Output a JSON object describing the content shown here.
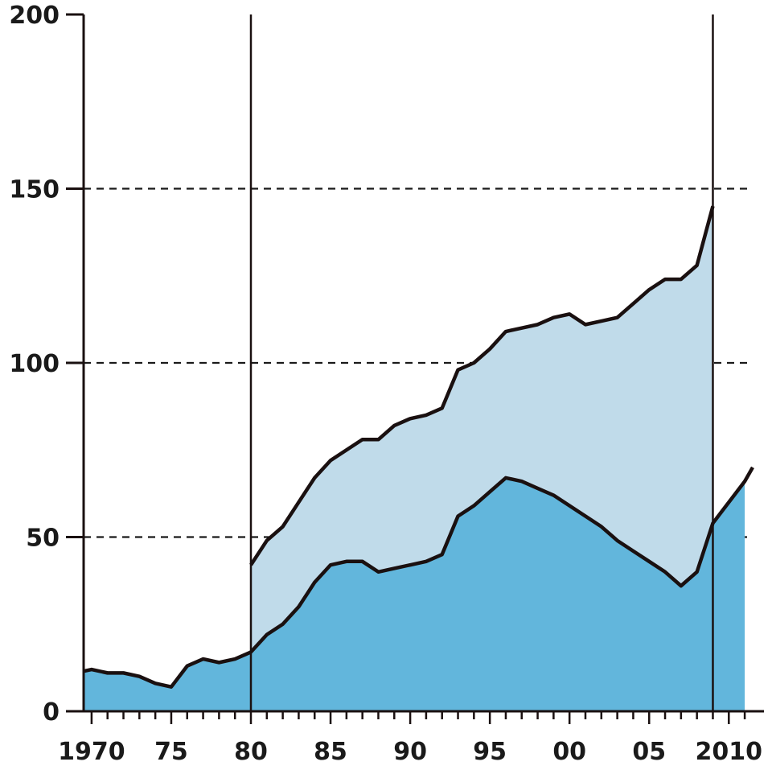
{
  "chart_data": {
    "type": "area",
    "title": "",
    "xlabel": "",
    "ylabel": "",
    "xlim": [
      1969.5,
      2011.5
    ],
    "ylim": [
      0,
      200
    ],
    "grid": "dashed horizontal at 50, 100, 150",
    "vertical_markers": [
      1980,
      2009
    ],
    "x_ticks": [
      {
        "value": 1970,
        "label": "1970"
      },
      {
        "value": 1975,
        "label": "75"
      },
      {
        "value": 1980,
        "label": "80"
      },
      {
        "value": 1985,
        "label": "85"
      },
      {
        "value": 1990,
        "label": "90"
      },
      {
        "value": 1995,
        "label": "95"
      },
      {
        "value": 2000,
        "label": "00"
      },
      {
        "value": 2005,
        "label": "05"
      },
      {
        "value": 2010,
        "label": "2010"
      }
    ],
    "y_ticks": [
      {
        "value": 0,
        "label": "0"
      },
      {
        "value": 50,
        "label": "50"
      },
      {
        "value": 100,
        "label": "100"
      },
      {
        "value": 150,
        "label": "150"
      },
      {
        "value": 200,
        "label": "200"
      }
    ],
    "series": [
      {
        "color": "#62b6dc",
        "x": [
          1969.5,
          1970,
          1971,
          1972,
          1973,
          1974,
          1975,
          1976,
          1977,
          1978,
          1979,
          1980,
          1981,
          1982,
          1983,
          1984,
          1985,
          1986,
          1987,
          1988,
          1989,
          1990,
          1991,
          1992,
          1993,
          1994,
          1995,
          1996,
          1997,
          1998,
          1999,
          2000,
          2001,
          2002,
          2003,
          2004,
          2005,
          2006,
          2007,
          2008,
          2009,
          2010,
          2011,
          2011.5
        ],
        "values": [
          11.5,
          12,
          11,
          11,
          10,
          8,
          7,
          13,
          15,
          14,
          15,
          17,
          22,
          25,
          30,
          37,
          42,
          43,
          43,
          40,
          41,
          42,
          43,
          45,
          56,
          59,
          63,
          67,
          66,
          64,
          62,
          59,
          56,
          53,
          49,
          46,
          43,
          40,
          36,
          40,
          54,
          60,
          66,
          70
        ]
      },
      {
        "color": "#c0dbea",
        "x": [
          1980,
          1981,
          1982,
          1983,
          1984,
          1985,
          1986,
          1987,
          1988,
          1989,
          1990,
          1991,
          1992,
          1993,
          1994,
          1995,
          1996,
          1997,
          1998,
          1999,
          2000,
          2001,
          2002,
          2003,
          2004,
          2005,
          2006,
          2007,
          2008,
          2009
        ],
        "values": [
          42,
          49,
          53,
          60,
          67,
          72,
          75,
          78,
          78,
          82,
          84,
          85,
          87,
          98,
          100,
          104,
          109,
          110,
          111,
          113,
          114,
          111,
          112,
          113,
          117,
          121,
          124,
          124,
          128,
          145
        ]
      }
    ]
  }
}
